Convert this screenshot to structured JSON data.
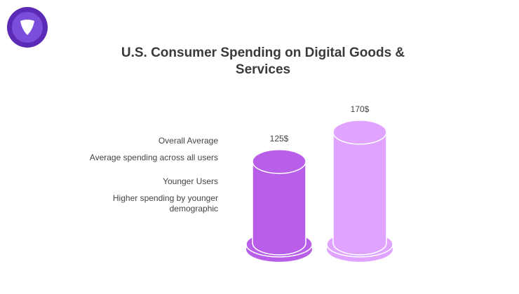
{
  "colors": {
    "logo_outer": "#5b2bb5",
    "logo_inner": "#7b4ddb",
    "series_overall": "#b85ee8",
    "series_younger": "#e0a3ff",
    "label_text": "#444444"
  },
  "legend": {
    "items": [
      {
        "label": "Overall Average",
        "description": "Average spending across all users"
      },
      {
        "label": "Younger Users",
        "description": "Higher spending by younger demographic"
      }
    ]
  },
  "chart_data": {
    "type": "bar",
    "title": "U.S. Consumer Spending on Digital Goods & Services",
    "categories": [
      "Overall Average",
      "Younger Users"
    ],
    "values": [
      125,
      170
    ],
    "value_labels": [
      "125$",
      "170$"
    ],
    "unit": "$",
    "ylim": [
      0,
      200
    ],
    "grid": false,
    "legend_position": "left"
  }
}
